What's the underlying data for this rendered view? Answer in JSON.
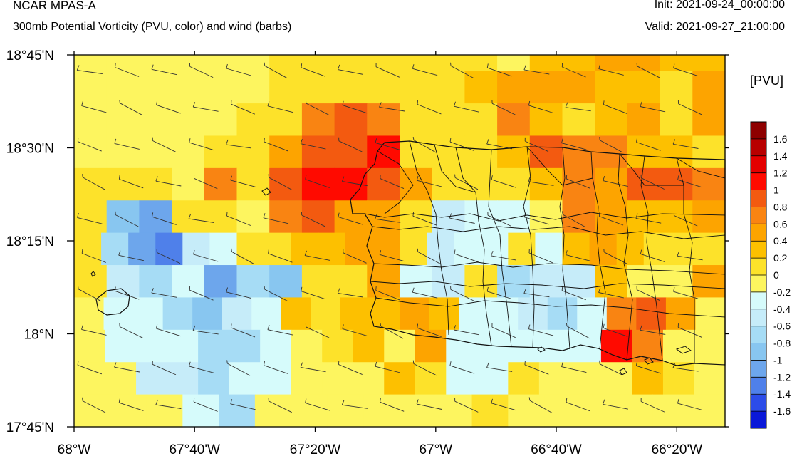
{
  "header": {
    "title": "NCAR MPAS-A",
    "subtitle": "300mb Potential Vorticity (PVU, color) and wind (barbs)",
    "init": "Init: 2021-09-24_00:00:00",
    "valid": "Valid: 2021-09-27_21:00:00"
  },
  "colorbar": {
    "units": "[PVU]",
    "labels": [
      "-1.6",
      "-1.4",
      "-1.2",
      "-1",
      "-0.8",
      "-0.6",
      "-0.4",
      "-0.2",
      "0",
      "0.2",
      "0.4",
      "0.6",
      "0.8",
      "1",
      "1.2",
      "1.4",
      "1.6"
    ],
    "colors": [
      "#0a18d8",
      "#2c4ce8",
      "#4f80ea",
      "#6da6ec",
      "#88c6f0",
      "#a6dcf5",
      "#c6ecf9",
      "#d6fbfb",
      "#fdf55f",
      "#fde22a",
      "#fdc000",
      "#fda400",
      "#f98412",
      "#f35a10",
      "#ff0a00",
      "#e40000",
      "#b80000",
      "#8e0000"
    ]
  },
  "map": {
    "x_axis": {
      "ticks": [
        -68.0,
        -67.6667,
        -67.3333,
        -67.0,
        -66.6667,
        -66.3333
      ],
      "labels": [
        "68°W",
        "67°40'W",
        "67°20'W",
        "67°W",
        "66°40'W",
        "66°20'W"
      ],
      "range": [
        -68.0,
        -66.2
      ]
    },
    "y_axis": {
      "ticks": [
        17.75,
        18.0,
        18.25,
        18.5,
        18.75
      ],
      "labels": [
        "17°45'N",
        "18°N",
        "18°15'N",
        "18°30'N",
        "18°45'N"
      ],
      "range": [
        17.75,
        18.75
      ]
    },
    "grid_rows_top_to_bottom": [
      "00000011111110223322",
      "00000011111123332213",
      "00000114541114212313",
      "00001135561112544221",
      "11104156653111243554",
      "1-4-511045331-2-1-1043223",
      "1-3-5-6-2-11122331-2-1-11-1232111",
      "1-2-3-1-5-3-4113-1-21-3-2-22003",
      "0-1-1-3-4-2-1212232-1-1-2-3-14530",
      "0-1-1-1-3-3-101203-1-1-1-1-16400",
      "00-2-2-3-1-100021-1-11000210",
      "000-1-30000001000000"
    ],
    "wind_barbs": "gridded 300mb wind barbs, westerly to west-northwesterly"
  }
}
